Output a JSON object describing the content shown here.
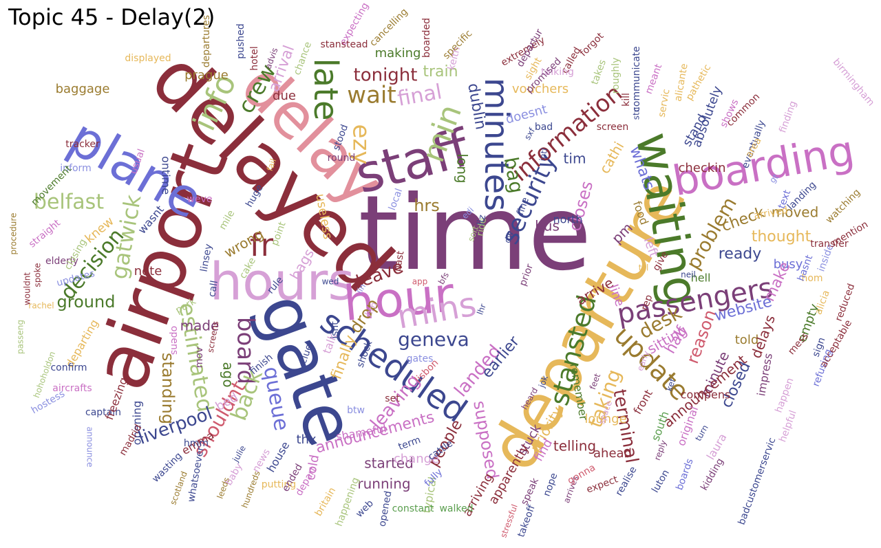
{
  "title": "Topic 45 - Delay(2)",
  "palette": [
    "#8b2e3b",
    "#6c6fd6",
    "#e2909c",
    "#7b3f78",
    "#4b7a2a",
    "#e6b85a",
    "#3c478f",
    "#c970c4",
    "#a8c47b",
    "#9a7b2f",
    "#5a9e4e",
    "#cf5b6e",
    "#8a8fe0",
    "#d6a0d6",
    "#5c2e6e"
  ],
  "words": [
    {
      "w": "time",
      "c": 3
    },
    {
      "w": "delayed",
      "c": 0
    },
    {
      "w": "airport",
      "c": 0
    },
    {
      "w": "gate",
      "c": 6
    },
    {
      "w": "departure",
      "c": 5
    },
    {
      "w": "delay",
      "c": 2
    },
    {
      "w": "hours",
      "c": 13
    },
    {
      "w": "plane",
      "c": 1
    },
    {
      "w": "staff",
      "c": 3
    },
    {
      "w": "waiting",
      "c": 4
    },
    {
      "w": "hour",
      "c": 7
    },
    {
      "w": "boarding",
      "c": 7
    },
    {
      "w": "scheduled",
      "c": 6
    },
    {
      "w": "minutes",
      "c": 6
    },
    {
      "w": "late",
      "c": 4
    },
    {
      "w": "mins",
      "c": 13
    },
    {
      "w": "passengers",
      "c": 3
    },
    {
      "w": "info",
      "c": 8
    },
    {
      "w": "stansted",
      "c": 4
    },
    {
      "w": "update",
      "c": 9
    },
    {
      "w": "min",
      "c": 8
    },
    {
      "w": "fr",
      "c": 0
    },
    {
      "w": "security",
      "c": 6
    },
    {
      "w": "information",
      "c": 0
    },
    {
      "w": "wait",
      "c": 9
    },
    {
      "w": "board",
      "c": 3
    },
    {
      "w": "ezy",
      "c": 5
    },
    {
      "w": "gatwick",
      "c": 8
    },
    {
      "w": "crew",
      "c": 4
    },
    {
      "w": "belfast",
      "c": 8
    },
    {
      "w": "queue",
      "c": 1
    },
    {
      "w": "estimated",
      "c": 8
    },
    {
      "w": "back",
      "c": 8
    },
    {
      "w": "geneva",
      "c": 6
    },
    {
      "w": "decision",
      "c": 4
    },
    {
      "w": "final",
      "c": 13
    },
    {
      "w": "tonight",
      "c": 0
    },
    {
      "w": "desk",
      "c": 9
    },
    {
      "w": "bag",
      "c": 4
    },
    {
      "w": "problem",
      "c": 9
    },
    {
      "w": "liverpool",
      "c": 6
    },
    {
      "w": "shouldnt",
      "c": 11
    },
    {
      "w": "terminal",
      "c": 0
    },
    {
      "w": "taking",
      "c": 5
    },
    {
      "w": "landed",
      "c": 7
    },
    {
      "w": "leave",
      "c": 0
    },
    {
      "w": "ground",
      "c": 4
    },
    {
      "w": "hrs",
      "c": 9
    },
    {
      "w": "dublin",
      "c": 6
    },
    {
      "w": "standing",
      "c": 9
    },
    {
      "w": "announcements",
      "c": 7
    },
    {
      "w": "leaving",
      "c": 7
    },
    {
      "w": "supposed",
      "c": 7
    },
    {
      "w": "drop",
      "c": 9
    },
    {
      "w": "reason",
      "c": 11
    },
    {
      "w": "half",
      "c": 7
    },
    {
      "w": "closes",
      "c": 7
    },
    {
      "w": "cathi",
      "c": 5
    },
    {
      "w": "whats",
      "c": 1
    },
    {
      "w": "closed",
      "c": 6
    },
    {
      "w": "ready",
      "c": 6
    },
    {
      "w": "website",
      "c": 1
    },
    {
      "w": "check",
      "c": 9
    },
    {
      "w": "thought",
      "c": 5
    },
    {
      "w": "moved",
      "c": 9
    },
    {
      "w": "train",
      "c": 8
    },
    {
      "w": "vouchers",
      "c": 5
    },
    {
      "w": "tim",
      "c": 6
    },
    {
      "w": "earlier",
      "c": 6
    },
    {
      "w": "people",
      "c": 0
    },
    {
      "w": "arrive",
      "c": 0
    },
    {
      "w": "line",
      "c": 7
    },
    {
      "w": "bus",
      "c": 3
    },
    {
      "w": "north",
      "c": 6
    },
    {
      "w": "pm",
      "c": 3
    },
    {
      "w": "food",
      "c": 9
    },
    {
      "w": "left",
      "c": 13
    },
    {
      "w": "busy",
      "c": 1
    },
    {
      "w": "minute",
      "c": 3
    },
    {
      "w": "told",
      "c": 9
    },
    {
      "w": "delays",
      "c": 0
    },
    {
      "w": "empty",
      "c": 4
    },
    {
      "w": "make",
      "c": 7
    },
    {
      "w": "checkin",
      "c": 0
    },
    {
      "w": "stand",
      "c": 6
    },
    {
      "w": "absolutely",
      "c": 6
    },
    {
      "w": "announcement",
      "c": 0
    },
    {
      "w": "sitting",
      "c": 7
    },
    {
      "w": "telling",
      "c": 0
    },
    {
      "w": "priority",
      "c": 5
    },
    {
      "w": "stuck",
      "c": 3
    },
    {
      "w": "started",
      "c": 3
    },
    {
      "w": "running",
      "c": 3
    },
    {
      "w": "change",
      "c": 13
    },
    {
      "w": "arriving",
      "c": 0
    },
    {
      "w": "made",
      "c": 3
    },
    {
      "w": "bags",
      "c": 13
    },
    {
      "w": "wrong",
      "c": 9
    },
    {
      "w": "knew",
      "c": 5
    },
    {
      "w": "prague",
      "c": 9
    },
    {
      "w": "making",
      "c": 4
    },
    {
      "w": "due",
      "c": 0
    },
    {
      "w": "arrival",
      "c": 13
    },
    {
      "w": "useless",
      "c": 5
    },
    {
      "w": "finally",
      "c": 5
    },
    {
      "w": "birmingham",
      "c": 13
    },
    {
      "w": "baggage",
      "c": 9
    },
    {
      "w": "long",
      "c": 4
    },
    {
      "w": "doesnt",
      "c": 12
    },
    {
      "w": "ontime",
      "c": 6
    },
    {
      "w": "note",
      "c": 0
    },
    {
      "w": "ago",
      "c": 4
    },
    {
      "w": "opening",
      "c": 6
    },
    {
      "w": "bed",
      "c": 13
    },
    {
      "w": "house",
      "c": 6
    },
    {
      "w": "cold",
      "c": 7
    },
    {
      "w": "ahead",
      "c": 0
    },
    {
      "w": "lounge",
      "c": 5
    },
    {
      "w": "remember",
      "c": 4
    },
    {
      "w": "front",
      "c": 0
    },
    {
      "w": "find",
      "c": 7
    },
    {
      "w": "apparently",
      "c": 0
    },
    {
      "w": "typical",
      "c": 8
    },
    {
      "w": "thx",
      "c": 6
    },
    {
      "w": "talk",
      "c": 13
    },
    {
      "w": "hell",
      "c": 4
    },
    {
      "w": "impress",
      "c": 3
    },
    {
      "w": "compens",
      "c": 0
    },
    {
      "w": "south",
      "c": 10
    },
    {
      "w": "original",
      "c": 7
    },
    {
      "w": "laura",
      "c": 13
    },
    {
      "w": "emma",
      "c": 0
    },
    {
      "w": "madrid",
      "c": 0
    },
    {
      "w": "captain",
      "c": 6
    },
    {
      "w": "freezing",
      "c": 0
    },
    {
      "w": "hostess",
      "c": 12
    },
    {
      "w": "elderly",
      "c": 3
    },
    {
      "w": "inform",
      "c": 12
    },
    {
      "w": "movement",
      "c": 4
    },
    {
      "w": "tracker",
      "c": 0
    },
    {
      "w": "straight",
      "c": 7
    },
    {
      "w": "closing",
      "c": 8
    },
    {
      "w": "updates",
      "c": 12
    },
    {
      "w": "departing",
      "c": 5
    },
    {
      "w": "confirm",
      "c": 6
    },
    {
      "w": "hohoholdon",
      "c": 8
    },
    {
      "w": "aircrafts",
      "c": 7
    },
    {
      "w": "wasnt",
      "c": 6
    },
    {
      "w": "weve",
      "c": 7
    },
    {
      "w": "mile",
      "c": 8
    },
    {
      "w": "huge",
      "c": 6
    },
    {
      "w": "point",
      "c": 8
    },
    {
      "w": "linsey",
      "c": 6
    },
    {
      "w": "cake",
      "c": 8
    },
    {
      "w": "rule",
      "c": 6
    },
    {
      "w": "call",
      "c": 6
    },
    {
      "w": "park",
      "c": 8
    },
    {
      "w": "opens",
      "c": 7
    },
    {
      "w": "mov",
      "c": 3
    },
    {
      "w": "finish",
      "c": 6
    },
    {
      "w": "clue",
      "c": 6
    },
    {
      "w": "shock",
      "c": 6
    },
    {
      "w": "isnt",
      "c": 6
    },
    {
      "w": "set",
      "c": 0
    },
    {
      "w": "btw",
      "c": 12
    },
    {
      "w": "shameful",
      "c": 7
    },
    {
      "w": "gates",
      "c": 12
    },
    {
      "w": "lisbon",
      "c": 11
    },
    {
      "w": "term",
      "c": 6
    },
    {
      "w": "cattle",
      "c": 6
    },
    {
      "w": "fully",
      "c": 1
    },
    {
      "w": "walked",
      "c": 10
    },
    {
      "w": "constant",
      "c": 10
    },
    {
      "w": "opened",
      "c": 6
    },
    {
      "w": "web",
      "c": 6
    },
    {
      "w": "happening",
      "c": 8
    },
    {
      "w": "britain",
      "c": 5
    },
    {
      "w": "putting",
      "c": 5
    },
    {
      "w": "depart",
      "c": 7
    },
    {
      "w": "ended",
      "c": 3
    },
    {
      "w": "news",
      "c": 13
    },
    {
      "w": "hundreds",
      "c": 9
    },
    {
      "w": "leeds",
      "c": 9
    },
    {
      "w": "baby",
      "c": 13
    },
    {
      "w": "julie",
      "c": 6
    },
    {
      "w": "whatsoever",
      "c": 6
    },
    {
      "w": "hmm",
      "c": 6
    },
    {
      "w": "wasting",
      "c": 6
    },
    {
      "w": "scotland",
      "c": 9
    },
    {
      "w": "takeoff",
      "c": 6
    },
    {
      "w": "stressful",
      "c": 11
    },
    {
      "w": "speak",
      "c": 3
    },
    {
      "w": "nope",
      "c": 6
    },
    {
      "w": "arrives",
      "c": 3
    },
    {
      "w": "gonna",
      "c": 11
    },
    {
      "w": "expect",
      "c": 0
    },
    {
      "w": "realise",
      "c": 6
    },
    {
      "w": "luton",
      "c": 6
    },
    {
      "w": "boards",
      "c": 1
    },
    {
      "w": "kidding",
      "c": 3
    },
    {
      "w": "badcustomerservic",
      "c": 6
    },
    {
      "w": "helpful",
      "c": 13
    },
    {
      "w": "happen",
      "c": 13
    },
    {
      "w": "mess",
      "c": 0
    },
    {
      "w": "sign",
      "c": 6
    },
    {
      "w": "refusing",
      "c": 1
    },
    {
      "w": "acceptable",
      "c": 0
    },
    {
      "w": "reduced",
      "c": 0
    },
    {
      "w": "alicia",
      "c": 5
    },
    {
      "w": "hom",
      "c": 5
    },
    {
      "w": "hasnt",
      "c": 1
    },
    {
      "w": "inside",
      "c": 12
    },
    {
      "w": "transfer",
      "c": 0
    },
    {
      "w": "mention",
      "c": 0
    },
    {
      "w": "watching",
      "c": 9
    },
    {
      "w": "arrived",
      "c": 5
    },
    {
      "w": "text",
      "c": 1
    },
    {
      "w": "landing",
      "c": 6
    },
    {
      "w": "eventually",
      "c": 6
    },
    {
      "w": "finding",
      "c": 13
    },
    {
      "w": "common",
      "c": 0
    },
    {
      "w": "shows",
      "c": 7
    },
    {
      "w": "area",
      "c": 5
    },
    {
      "w": "pathetic",
      "c": 5
    },
    {
      "w": "alicante",
      "c": 5
    },
    {
      "w": "communicate",
      "c": 6
    },
    {
      "w": "servic",
      "c": 5
    },
    {
      "w": "meant",
      "c": 7
    },
    {
      "w": "screen",
      "c": 0
    },
    {
      "w": "kill",
      "c": 0
    },
    {
      "w": "roughly",
      "c": 8
    },
    {
      "w": "takes",
      "c": 8
    },
    {
      "w": "forgot",
      "c": 0
    },
    {
      "w": "called",
      "c": 0
    },
    {
      "w": "talking",
      "c": 13
    },
    {
      "w": "promised",
      "c": 3
    },
    {
      "w": "sight",
      "c": 5
    },
    {
      "w": "extremely",
      "c": 0
    },
    {
      "w": "departur",
      "c": 3
    },
    {
      "w": "keith",
      "c": 13
    },
    {
      "w": "specific",
      "c": 9
    },
    {
      "w": "boarded",
      "c": 0
    },
    {
      "w": "cancelling",
      "c": 9
    },
    {
      "w": "expecting",
      "c": 7
    },
    {
      "w": "stanstead",
      "c": 0
    },
    {
      "w": "chance",
      "c": 8
    },
    {
      "w": "advis",
      "c": 3
    },
    {
      "w": "hotel",
      "c": 0
    },
    {
      "w": "pushed",
      "c": 6
    },
    {
      "w": "departures",
      "c": 9
    },
    {
      "w": "displayed",
      "c": 5
    },
    {
      "w": "usual",
      "c": 7
    },
    {
      "w": "bad",
      "c": 6
    },
    {
      "w": "sxf",
      "c": 6
    },
    {
      "w": "fail",
      "c": 5
    },
    {
      "w": "round",
      "c": 3
    },
    {
      "w": "stood",
      "c": 6
    },
    {
      "w": "local",
      "c": 12
    },
    {
      "w": "intl",
      "c": 6
    },
    {
      "w": "fine",
      "c": 6
    },
    {
      "w": "edi",
      "c": 12
    },
    {
      "w": "ride",
      "c": 8
    },
    {
      "w": "sort",
      "c": 8
    },
    {
      "w": "liz",
      "c": 6
    },
    {
      "w": "dw",
      "c": 6
    },
    {
      "w": "wed",
      "c": 6
    },
    {
      "w": "past",
      "c": 0
    },
    {
      "w": "app",
      "c": 11
    },
    {
      "w": "bfs",
      "c": 3
    },
    {
      "w": "lin",
      "c": 12
    },
    {
      "w": "hm",
      "c": 13
    },
    {
      "w": "lhr",
      "c": 6
    },
    {
      "w": "prior",
      "c": 3
    },
    {
      "w": "till",
      "c": 5
    },
    {
      "w": "rep",
      "c": 0
    },
    {
      "w": "neil",
      "c": 6
    },
    {
      "w": "give",
      "c": 0
    },
    {
      "w": "kef",
      "c": 6
    },
    {
      "w": "early",
      "c": 13
    },
    {
      "w": "feet",
      "c": 3
    },
    {
      "w": "jok",
      "c": 6
    },
    {
      "w": "heard",
      "c": 3
    },
    {
      "w": "space",
      "c": 13
    },
    {
      "w": "turn",
      "c": 6
    },
    {
      "w": "reply",
      "c": 3
    },
    {
      "w": "screens",
      "c": 0
    },
    {
      "w": "rachel",
      "c": 5
    },
    {
      "w": "spoke",
      "c": 0
    },
    {
      "w": "passeng",
      "c": 8
    },
    {
      "w": "wouldnt",
      "c": 0
    },
    {
      "w": "procedure",
      "c": 9
    },
    {
      "w": "announce",
      "c": 12
    },
    {
      "w": "gt",
      "c": 12
    },
    {
      "w": "stn",
      "c": 6
    }
  ]
}
